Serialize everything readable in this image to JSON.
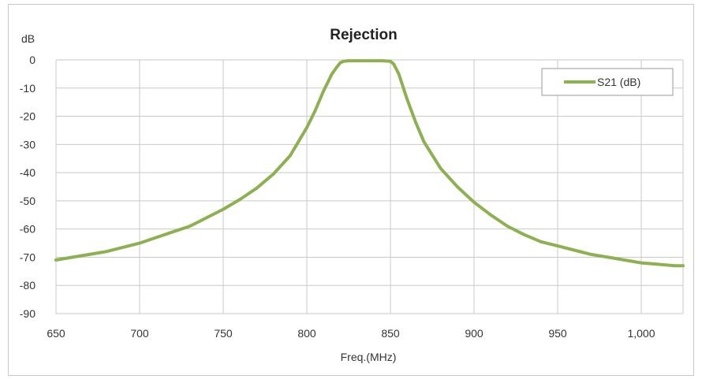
{
  "chart_data": {
    "type": "line",
    "title": "Rejection",
    "xlabel": "Freq.(MHz)",
    "ylabel": "dB",
    "xlim": [
      650,
      1025
    ],
    "ylim": [
      -90,
      0
    ],
    "xticks": [
      650,
      700,
      750,
      800,
      850,
      900,
      950,
      1000
    ],
    "xtick_labels": [
      "650",
      "700",
      "750",
      "800",
      "850",
      "900",
      "950",
      "1,000"
    ],
    "yticks": [
      0,
      -10,
      -20,
      -30,
      -40,
      -50,
      -60,
      -70,
      -80,
      -90
    ],
    "ytick_labels": [
      "0",
      "-10",
      "-20",
      "-30",
      "-40",
      "-50",
      "-60",
      "-70",
      "-80",
      "-90"
    ],
    "grid": true,
    "legend_position": "top-right",
    "series": [
      {
        "name": "S21 (dB)",
        "color": "#8db050",
        "x": [
          650,
          660,
          670,
          680,
          690,
          700,
          710,
          720,
          730,
          740,
          750,
          760,
          770,
          780,
          790,
          800,
          805,
          810,
          815,
          818,
          820,
          822,
          825,
          830,
          840,
          845,
          850,
          852,
          855,
          860,
          865,
          870,
          880,
          890,
          900,
          910,
          920,
          930,
          940,
          950,
          960,
          970,
          980,
          990,
          1000,
          1010,
          1020,
          1025
        ],
        "y": [
          -71,
          -70,
          -69,
          -68,
          -66.5,
          -65,
          -63,
          -61,
          -59,
          -56,
          -53,
          -49.5,
          -45.5,
          -40.5,
          -34,
          -24,
          -18,
          -11,
          -5,
          -2.5,
          -1,
          -0.5,
          -0.3,
          -0.3,
          -0.3,
          -0.3,
          -0.5,
          -1.5,
          -5,
          -14,
          -22,
          -29,
          -38.5,
          -45,
          -50.5,
          -55,
          -59,
          -62,
          -64.5,
          -66,
          -67.5,
          -69,
          -70,
          -71,
          -72,
          -72.5,
          -73,
          -73
        ]
      }
    ]
  }
}
